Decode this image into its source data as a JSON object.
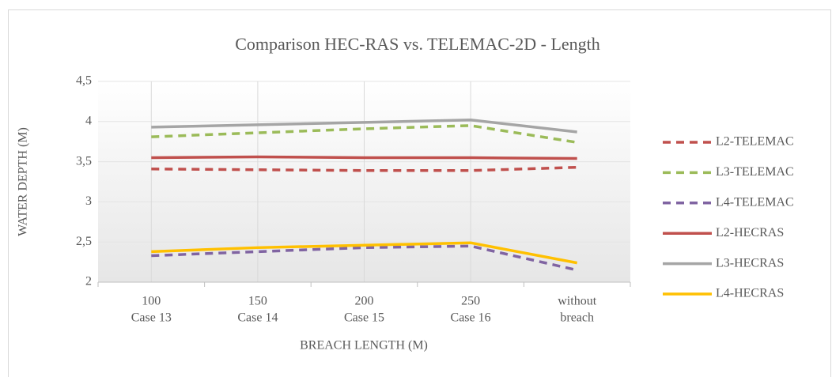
{
  "chart_data": {
    "type": "line",
    "title": "Comparison HEC-RAS vs. TELEMAC-2D - Length",
    "x_label": "BREACH LENGTH (M)",
    "y_label": "WATER DEPTH (M)",
    "categories": [
      [
        "100",
        "Case 13"
      ],
      [
        "150",
        "Case 14"
      ],
      [
        "200",
        "Case 15"
      ],
      [
        "250",
        "Case 16"
      ],
      [
        "without",
        "breach"
      ]
    ],
    "ylim": [
      2,
      4.5
    ],
    "yticks": [
      2,
      {
        "value": 2.5,
        "label": "2,5"
      },
      3,
      {
        "value": 3.5,
        "label": "3,5"
      },
      4,
      {
        "value": 4.5,
        "label": "4,5"
      }
    ],
    "grid": true,
    "legend": "right",
    "series": [
      {
        "name": "L2-TELEMAC",
        "color": "#c0504d",
        "style": "dashed",
        "values": [
          3.41,
          3.4,
          3.39,
          3.39,
          3.43
        ]
      },
      {
        "name": "L3-TELEMAC",
        "color": "#9bbb59",
        "style": "dashed",
        "values": [
          3.81,
          3.86,
          3.91,
          3.95,
          3.74
        ]
      },
      {
        "name": "L4-TELEMAC",
        "color": "#8064a2",
        "style": "dashed",
        "values": [
          2.33,
          2.38,
          2.43,
          2.45,
          2.15
        ]
      },
      {
        "name": "L2-HECRAS",
        "color": "#c0504d",
        "style": "solid",
        "values": [
          3.55,
          3.56,
          3.55,
          3.55,
          3.54
        ]
      },
      {
        "name": "L3-HECRAS",
        "color": "#a5a5a5",
        "style": "solid",
        "values": [
          3.93,
          3.96,
          3.99,
          4.02,
          3.87
        ]
      },
      {
        "name": "L4-HECRAS",
        "color": "#ffc000",
        "style": "solid",
        "values": [
          2.38,
          2.43,
          2.46,
          2.49,
          2.24
        ]
      }
    ]
  }
}
